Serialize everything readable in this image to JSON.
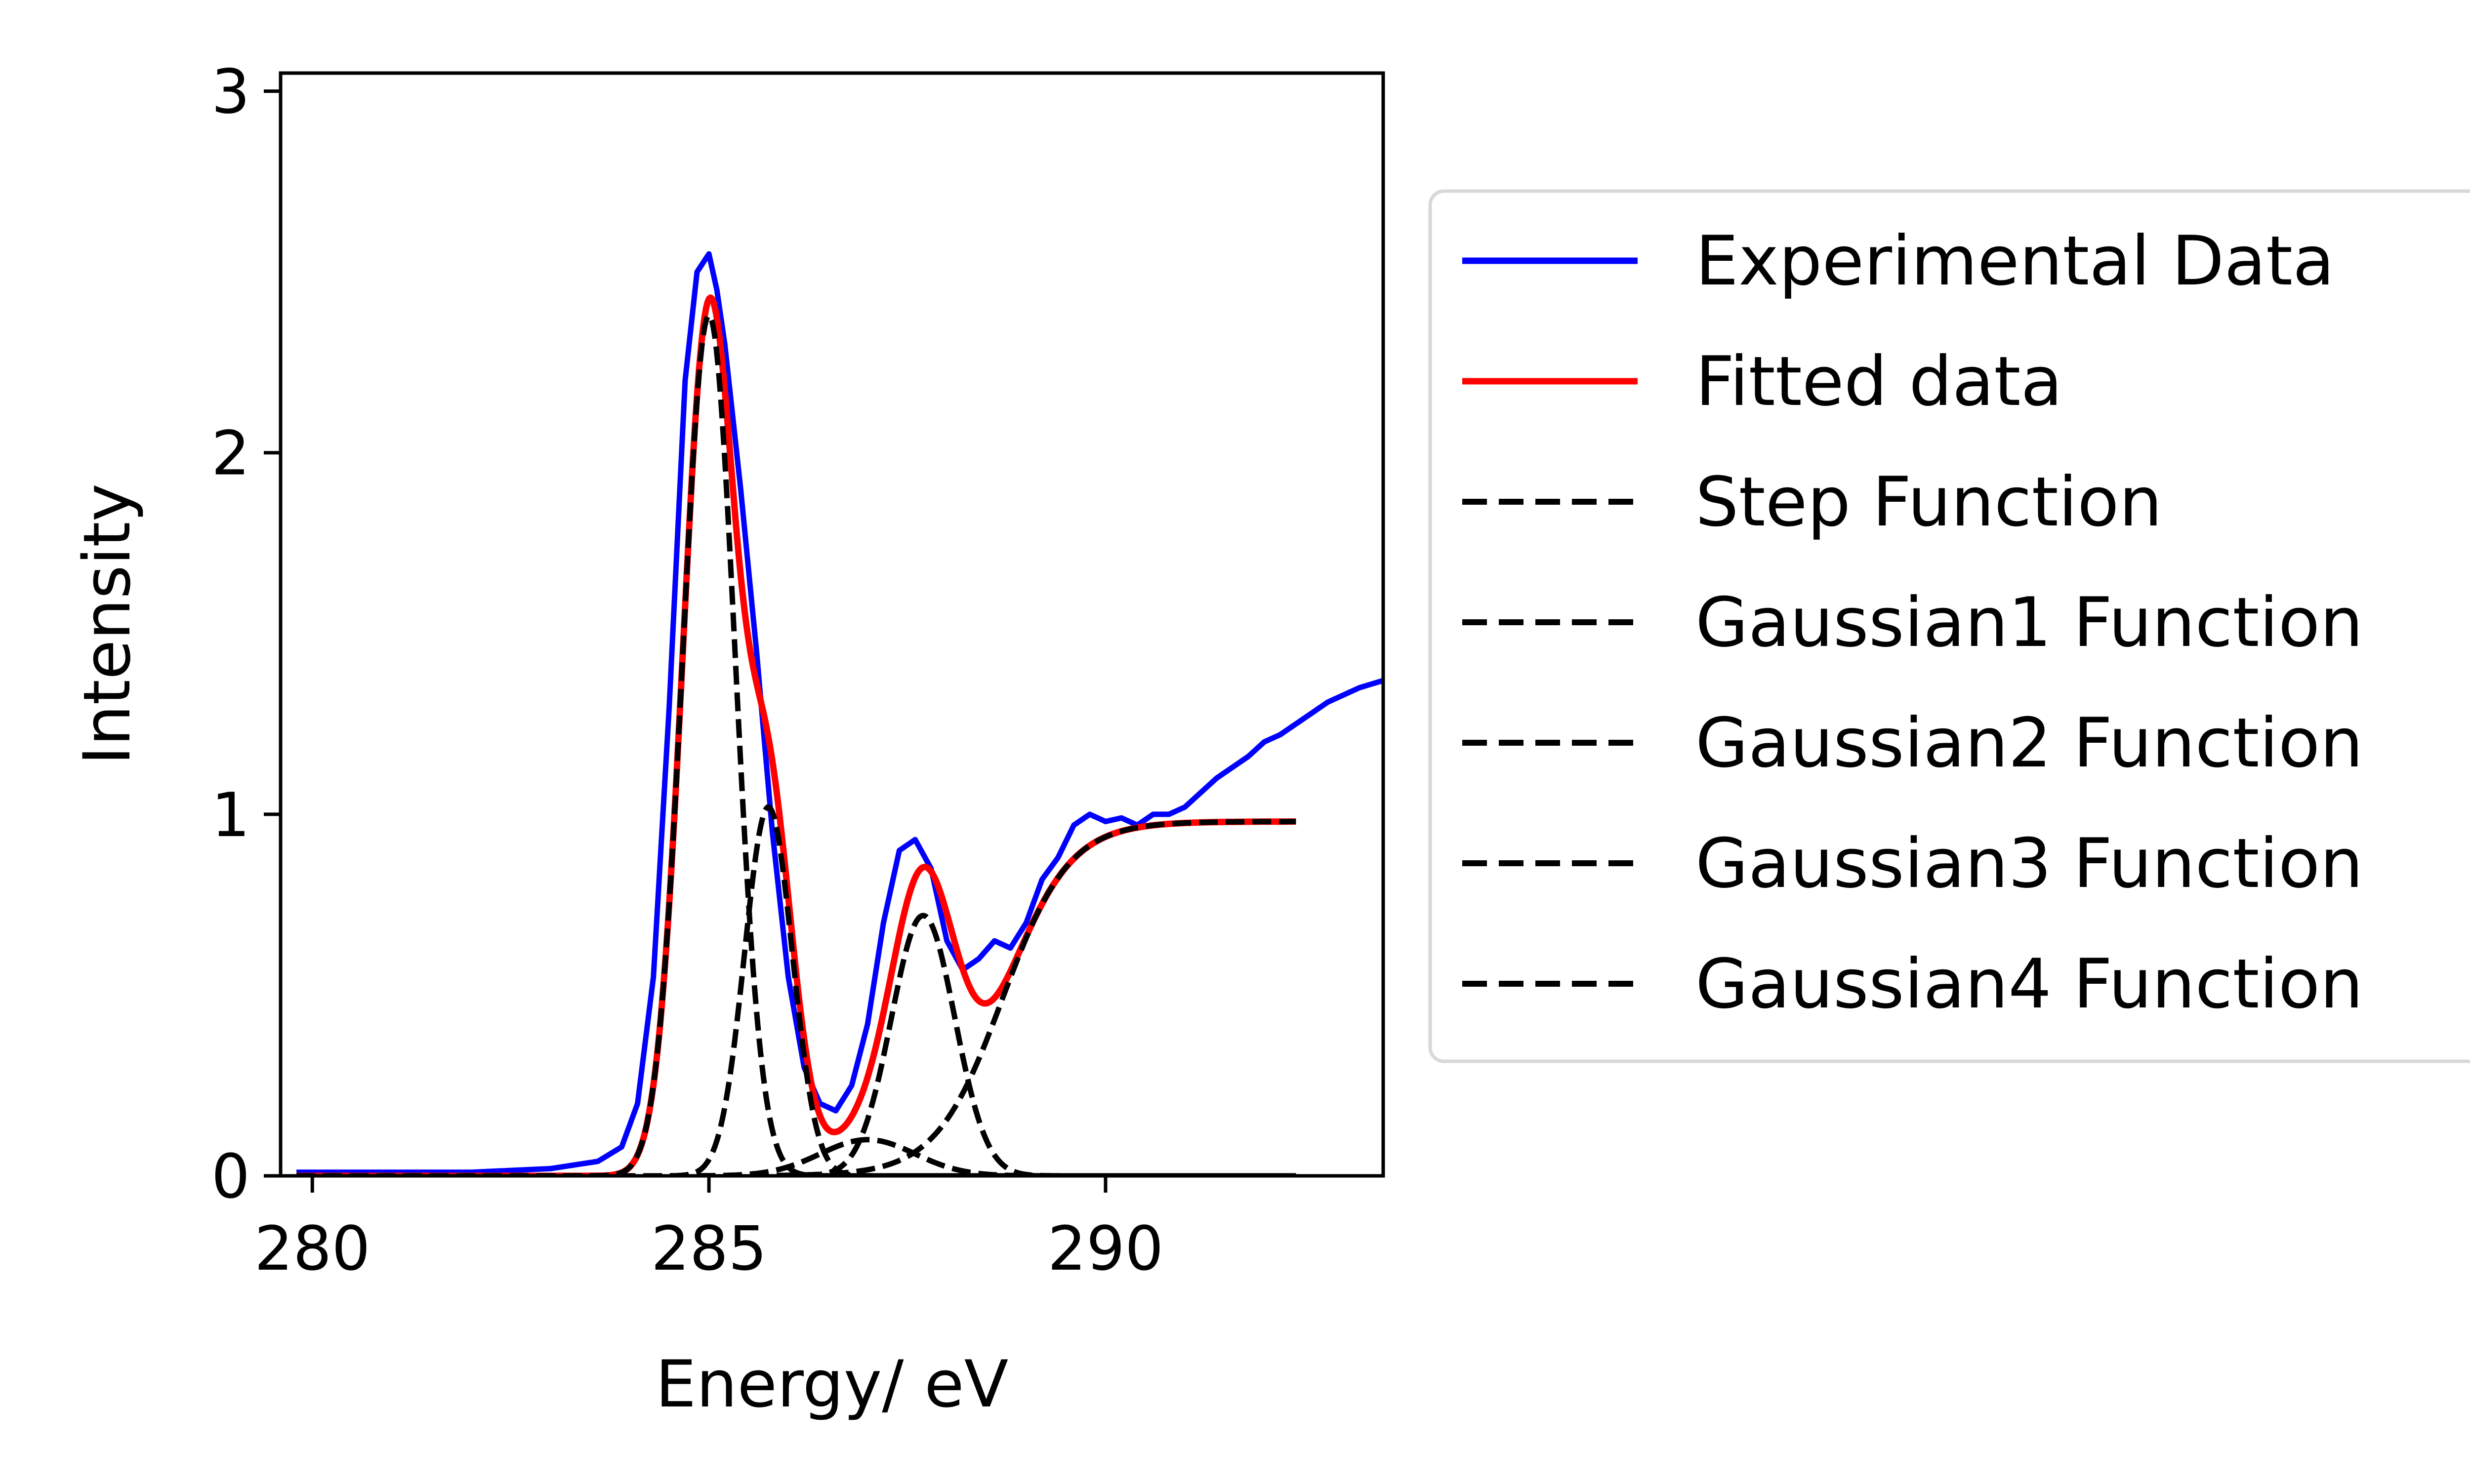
{
  "chart_data": {
    "type": "line",
    "xlabel": "Energy/ eV",
    "ylabel": "Intensity",
    "xlim": [
      279.6,
      293.5
    ],
    "ylim": [
      0,
      3.05
    ],
    "xticks": [
      280,
      285,
      290
    ],
    "yticks": [
      0,
      1,
      2,
      3
    ],
    "grid": false,
    "legend_position": "right, outside plot",
    "series": [
      {
        "name": "Experimental Data",
        "color": "#0000ff",
        "style": "solid",
        "x": [
          279.8,
          281,
          282,
          283,
          283.6,
          283.9,
          284.1,
          284.3,
          284.5,
          284.7,
          284.85,
          285.0,
          285.1,
          285.2,
          285.4,
          285.6,
          285.8,
          286.0,
          286.2,
          286.4,
          286.6,
          286.8,
          287.0,
          287.2,
          287.4,
          287.6,
          287.8,
          288.0,
          288.2,
          288.4,
          288.6,
          288.8,
          289.0,
          289.2,
          289.4,
          289.6,
          289.8,
          290.0,
          290.2,
          290.4,
          290.6,
          290.8,
          291.0,
          291.2,
          291.4,
          291.6,
          291.8,
          292.0,
          292.2,
          292.4,
          292.6,
          292.8,
          293.0,
          293.2,
          293.5
        ],
        "y": [
          0.01,
          0.01,
          0.01,
          0.02,
          0.04,
          0.08,
          0.2,
          0.55,
          1.3,
          2.2,
          2.5,
          2.55,
          2.45,
          2.3,
          1.9,
          1.45,
          0.95,
          0.55,
          0.3,
          0.2,
          0.18,
          0.25,
          0.42,
          0.7,
          0.9,
          0.93,
          0.85,
          0.65,
          0.57,
          0.6,
          0.65,
          0.63,
          0.7,
          0.82,
          0.88,
          0.97,
          1.0,
          0.98,
          0.99,
          0.97,
          1.0,
          1.0,
          1.02,
          1.06,
          1.1,
          1.13,
          1.16,
          1.2,
          1.22,
          1.25,
          1.28,
          1.31,
          1.33,
          1.35,
          1.37
        ]
      },
      {
        "name": "Fitted data",
        "color": "#ff0000",
        "style": "solid"
      },
      {
        "name": "Step Function",
        "color": "#000000",
        "style": "dashed",
        "params": {
          "height": 0.98,
          "center": 288.7,
          "width": 0.42,
          "xmin": 279.8,
          "xmax": 292.4
        }
      },
      {
        "name": "Gaussian1 Function",
        "color": "#000000",
        "style": "dashed",
        "params": {
          "amplitude": 2.38,
          "center": 285.0,
          "sigma": 0.33,
          "xmin": 279.8,
          "xmax": 292.4
        }
      },
      {
        "name": "Gaussian2 Function",
        "color": "#000000",
        "style": "dashed",
        "params": {
          "amplitude": 1.02,
          "center": 285.75,
          "sigma": 0.3,
          "xmin": 279.8,
          "xmax": 292.4
        }
      },
      {
        "name": "Gaussian3 Function",
        "color": "#000000",
        "style": "dashed",
        "params": {
          "amplitude": 0.72,
          "center": 287.7,
          "sigma": 0.4,
          "xmin": 279.8,
          "xmax": 292.4
        }
      },
      {
        "name": "Gaussian4 Function",
        "color": "#000000",
        "style": "dashed",
        "params": {
          "amplitude": 0.1,
          "center": 287.0,
          "sigma": 0.6,
          "xmin": 279.8,
          "xmax": 292.4
        }
      }
    ]
  }
}
